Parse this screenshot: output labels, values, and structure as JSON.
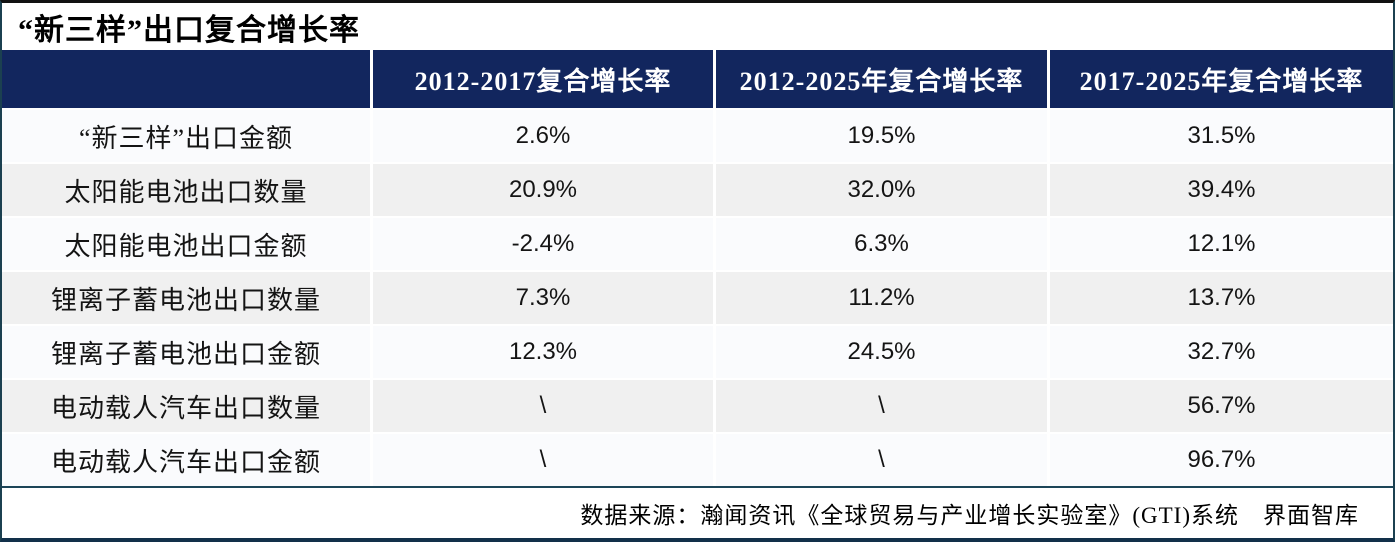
{
  "title": "“新三样”出口复合增长率",
  "colors": {
    "header_bg": "#12265E",
    "row_light": "#FAFBFD",
    "row_stripe": "#F0F0F0",
    "rule_teal": "#1C4558",
    "header_text": "#FFFFFF",
    "body_text": "#141414"
  },
  "table": {
    "columns": [
      "",
      "2012-2017复合增长率",
      "2012-2025年复合增长率",
      "2017-2025年复合增长率"
    ],
    "rows": [
      {
        "label": "“新三样”出口金额",
        "v1": "2.6%",
        "v2": "19.5%",
        "v3": "31.5%"
      },
      {
        "label": "太阳能电池出口数量",
        "v1": "20.9%",
        "v2": "32.0%",
        "v3": "39.4%"
      },
      {
        "label": "太阳能电池出口金额",
        "v1": "-2.4%",
        "v2": "6.3%",
        "v3": "12.1%"
      },
      {
        "label": "锂离子蓄电池出口数量",
        "v1": "7.3%",
        "v2": "11.2%",
        "v3": "13.7%"
      },
      {
        "label": "锂离子蓄电池出口金额",
        "v1": "12.3%",
        "v2": "24.5%",
        "v3": "32.7%"
      },
      {
        "label": "电动载人汽车出口数量",
        "v1": "\\",
        "v2": "\\",
        "v3": "56.7%"
      },
      {
        "label": "电动载人汽车出口金额",
        "v1": "\\",
        "v2": "\\",
        "v3": "96.7%"
      }
    ]
  },
  "footer": {
    "source": "数据来源：瀚闻资讯《全球贸易与产业增长实验室》(GTI)系统　界面智库"
  },
  "chart_data": {
    "type": "table",
    "title": "“新三样”出口复合增长率",
    "columns": [
      "2012-2017复合增长率",
      "2012-2025年复合增长率",
      "2017-2025年复合增长率"
    ],
    "categories": [
      "“新三样”出口金额",
      "太阳能电池出口数量",
      "太阳能电池出口金额",
      "锂离子蓄电池出口数量",
      "锂离子蓄电池出口金额",
      "电动载人汽车出口数量",
      "电动载人汽车出口金额"
    ],
    "series": [
      {
        "name": "2012-2017复合增长率",
        "values": [
          2.6,
          20.9,
          -2.4,
          7.3,
          12.3,
          null,
          null
        ]
      },
      {
        "name": "2012-2025年复合增长率",
        "values": [
          19.5,
          32.0,
          6.3,
          11.2,
          24.5,
          null,
          null
        ]
      },
      {
        "name": "2017-2025年复合增长率",
        "values": [
          31.5,
          39.4,
          12.1,
          13.7,
          32.7,
          56.7,
          96.7
        ]
      }
    ],
    "unit": "%",
    "missing_marker": "\\",
    "source": "数据来源：瀚闻资讯《全球贸易与产业增长实验室》(GTI)系统　界面智库"
  }
}
